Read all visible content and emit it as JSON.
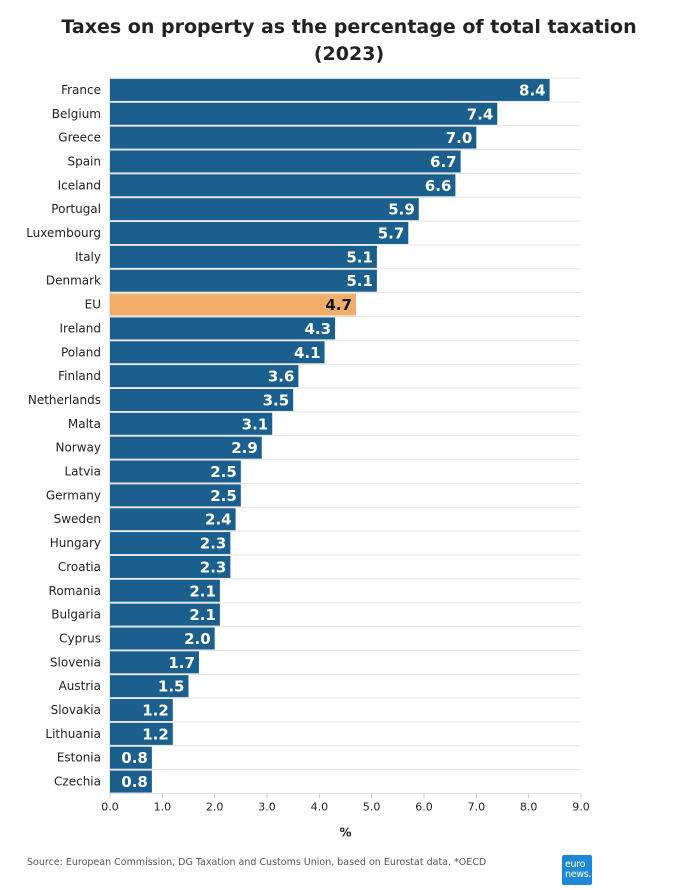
{
  "chart_data": {
    "type": "bar",
    "orientation": "horizontal",
    "title": [
      "Taxes on property as the percentage of total taxation",
      "(2023)"
    ],
    "xlabel": "%",
    "xlim": [
      0,
      9
    ],
    "xticks": [
      "0.0",
      "1.0",
      "2.0",
      "3.0",
      "4.0",
      "5.0",
      "6.0",
      "7.0",
      "8.0",
      "9.0"
    ],
    "grid": true,
    "categories": [
      "France",
      "Belgium",
      "Greece",
      "Spain",
      "Iceland",
      "Portugal",
      "Luxembourg",
      "Italy",
      "Denmark",
      "EU",
      "Ireland",
      "Poland",
      "Finland",
      "Netherlands",
      "Malta",
      "Norway",
      "Latvia",
      "Germany",
      "Sweden",
      "Hungary",
      "Croatia",
      "Romania",
      "Bulgaria",
      "Cyprus",
      "Slovenia",
      "Austria",
      "Slovakia",
      "Lithuania",
      "Estonia",
      "Czechia"
    ],
    "values": [
      8.4,
      7.4,
      7.0,
      6.7,
      6.6,
      5.9,
      5.7,
      5.1,
      5.1,
      4.7,
      4.3,
      4.1,
      3.6,
      3.5,
      3.1,
      2.9,
      2.5,
      2.5,
      2.4,
      2.3,
      2.3,
      2.1,
      2.1,
      2.0,
      1.7,
      1.5,
      1.2,
      1.2,
      0.8,
      0.8
    ],
    "value_labels": [
      "8.4",
      "7.4",
      "7.0",
      "6.7",
      "6.6",
      "5.9",
      "5.7",
      "5.1",
      "5.1",
      "4.7",
      "4.3",
      "4.1",
      "3.6",
      "3.5",
      "3.1",
      "2.9",
      "2.5",
      "2.5",
      "2.4",
      "2.3",
      "2.3",
      "2.1",
      "2.1",
      "2.0",
      "1.7",
      "1.5",
      "1.2",
      "1.2",
      "0.8",
      "0.8"
    ],
    "highlight_category": "EU",
    "colors": {
      "bar": "#1b5f8e",
      "highlight": "#f0ad6b",
      "label_on_bar": "#ffffff",
      "label_on_highlight": "#111111",
      "grid": "#e3e3e3"
    }
  },
  "footer": {
    "source": "Source: European Commission, DG Taxation and Customs Union, based on Eurostat data. *OECD",
    "logo_line1": "euro",
    "logo_line2": "news."
  }
}
